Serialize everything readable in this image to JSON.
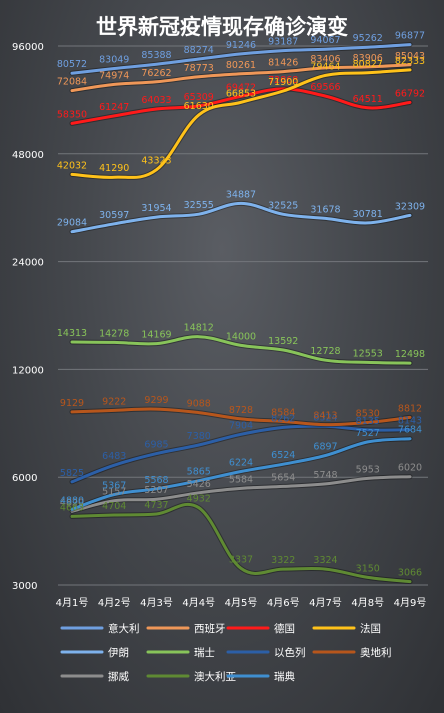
{
  "chart_data": {
    "type": "line",
    "title": "世界新冠疫情现存确诊演变",
    "xlabel": "",
    "ylabel": "",
    "y_scale": "log2",
    "ylim": [
      3000,
      96000
    ],
    "y_ticks": [
      3000,
      6000,
      12000,
      24000,
      48000,
      96000
    ],
    "y_tick_labels": [
      "3000",
      "6000",
      "12000",
      "24000",
      "48000",
      "96000"
    ],
    "grid": true,
    "legend_position": "bottom",
    "categories": [
      "4月1号",
      "4月2号",
      "4月3号",
      "4月4号",
      "4月5号",
      "4月6号",
      "4月7号",
      "4月8号",
      "4月9号"
    ],
    "series": [
      {
        "name": "意大利",
        "color": "#6f9fe0",
        "values": [
          80572,
          83049,
          85388,
          88274,
          91246,
          93187,
          94067,
          95262,
          96877
        ]
      },
      {
        "name": "西班牙",
        "color": "#ef9758",
        "values": [
          72084,
          74974,
          76262,
          78773,
          80261,
          81426,
          83406,
          83906,
          85043
        ]
      },
      {
        "name": "德国",
        "color": "#ff1a1a",
        "values": [
          58350,
          61247,
          64033,
          65309,
          69472,
          72868,
          69566,
          64511,
          66792
        ]
      },
      {
        "name": "法国",
        "color": "#ffc21a",
        "values": [
          42032,
          41290,
          43323,
          61630,
          66853,
          71900,
          79464,
          80827,
          82333
        ]
      },
      {
        "name": "伊朗",
        "color": "#7eb2ec",
        "values": [
          29084,
          30597,
          31954,
          32555,
          34887,
          32525,
          31678,
          30781,
          32309
        ]
      },
      {
        "name": "瑞士",
        "color": "#88c45a",
        "values": [
          14313,
          14278,
          14169,
          14812,
          14000,
          13592,
          12728,
          12553,
          12498
        ]
      },
      {
        "name": "以色列",
        "color": "#2c5fa7",
        "values": [
          5825,
          6483,
          6985,
          7380,
          7904,
          8262,
          8324,
          8135,
          8143
        ]
      },
      {
        "name": "奥地利",
        "color": "#b7561c",
        "values": [
          9129,
          9222,
          9299,
          9088,
          8728,
          8584,
          8413,
          8530,
          8812
        ]
      },
      {
        "name": "挪威",
        "color": "#8d8d8d",
        "values": [
          4820,
          5157,
          5207,
          5426,
          5584,
          5654,
          5748,
          5953,
          6020
        ]
      },
      {
        "name": "澳大利亚",
        "color": "#5f8a33",
        "values": [
          4663,
          4704,
          4737,
          4932,
          3337,
          3322,
          3324,
          3150,
          3066
        ]
      },
      {
        "name": "瑞典",
        "color": "#3f8fd0",
        "values": [
          4880,
          5367,
          5568,
          5865,
          6224,
          6524,
          6897,
          7527,
          7684
        ]
      }
    ]
  }
}
